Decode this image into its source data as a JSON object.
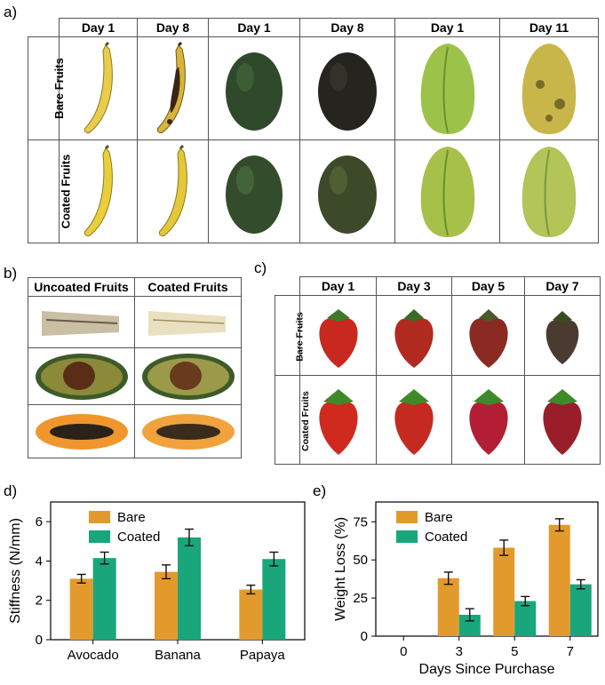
{
  "panels": {
    "a_label": "a)",
    "b_label": "b)",
    "c_label": "c)",
    "d_label": "d)",
    "e_label": "e)"
  },
  "panel_a": {
    "columns": [
      "Day 1",
      "Day 8",
      "Day 1",
      "Day 8",
      "Day 1",
      "Day 11"
    ],
    "rows": [
      "Bare Fruits",
      "Coated Fruits"
    ]
  },
  "panel_b": {
    "columns": [
      "Uncoated Fruits",
      "Coated Fruits"
    ]
  },
  "panel_c": {
    "columns": [
      "Day 1",
      "Day 3",
      "Day 5",
      "Day 7"
    ],
    "rows": [
      "Bare Fruits",
      "Coated Fruits"
    ]
  },
  "colors": {
    "bare": "#e39a2d",
    "coated": "#1aa67b"
  },
  "chart_data": [
    {
      "type": "bar",
      "panel": "d",
      "categories": [
        "Avocado",
        "Banana",
        "Papaya"
      ],
      "series": [
        {
          "name": "Bare",
          "values": [
            3.1,
            3.45,
            2.55
          ],
          "errors": [
            0.22,
            0.35,
            0.22
          ]
        },
        {
          "name": "Coated",
          "values": [
            4.15,
            5.2,
            4.1
          ],
          "errors": [
            0.3,
            0.42,
            0.35
          ]
        }
      ],
      "ylabel": "Stiffness (N/mm)",
      "xlabel": "",
      "ylim": [
        0,
        7
      ],
      "yticks": [
        0,
        2,
        4,
        6
      ],
      "legend": "top-left"
    },
    {
      "type": "bar",
      "panel": "e",
      "categories": [
        "0",
        "3",
        "5",
        "7"
      ],
      "series": [
        {
          "name": "Bare",
          "values": [
            null,
            38,
            58,
            73
          ],
          "errors": [
            0,
            4,
            5,
            4
          ]
        },
        {
          "name": "Coated",
          "values": [
            null,
            14,
            23,
            34
          ],
          "errors": [
            0,
            4,
            3,
            3
          ]
        }
      ],
      "ylabel": "Weight Loss (%)",
      "xlabel": "Days Since Purchase",
      "ylim": [
        0,
        88
      ],
      "yticks": [
        0,
        25,
        50,
        75
      ],
      "legend": "top-left"
    }
  ]
}
